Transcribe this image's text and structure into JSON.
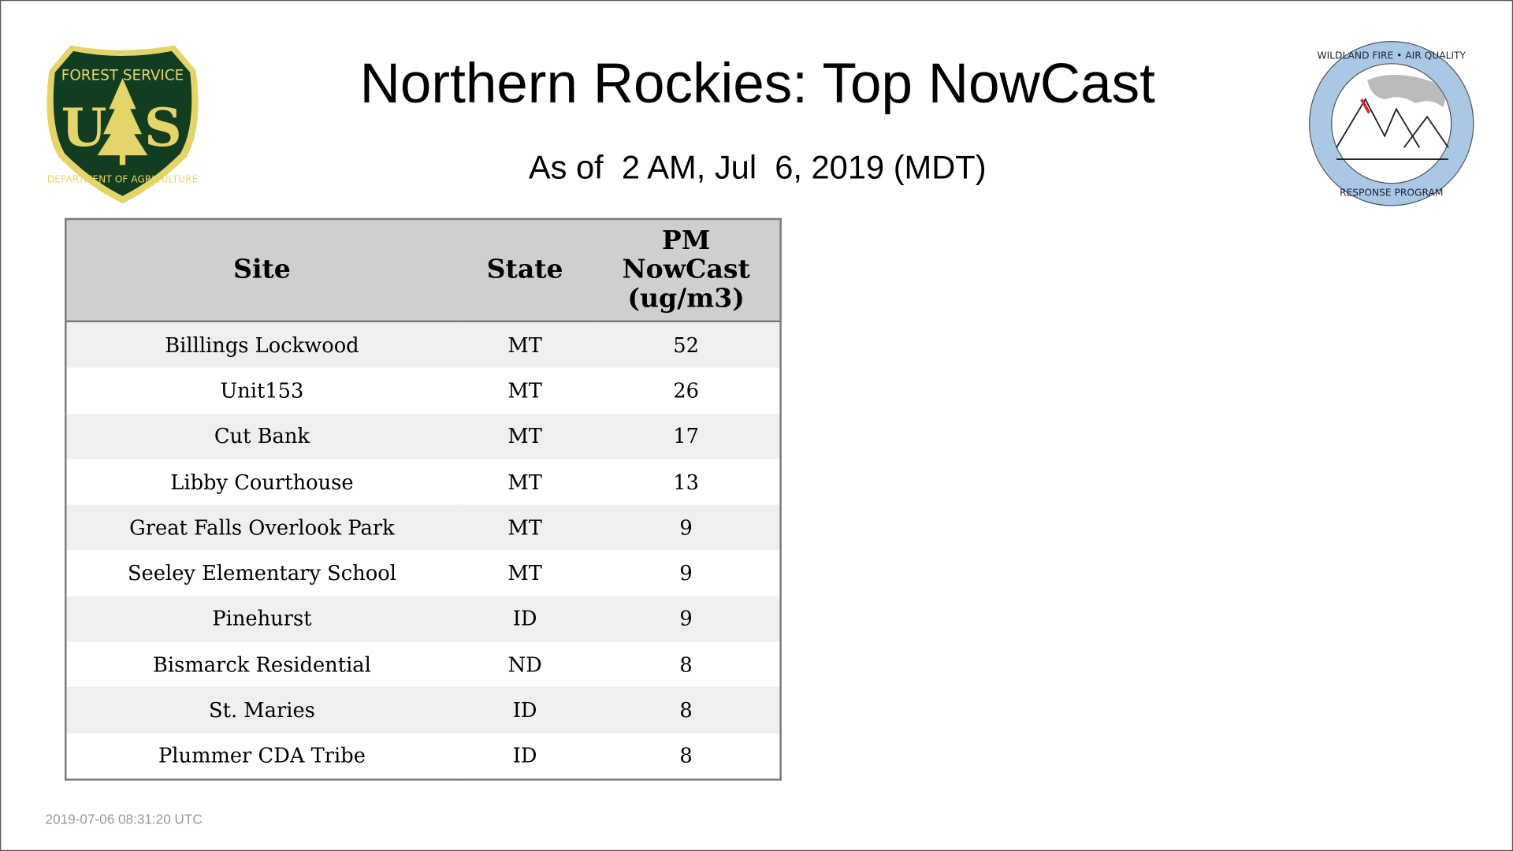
{
  "header": {
    "title": "Northern Rockies: Top NowCast",
    "subtitle": "As of  2 AM, Jul  6, 2019 (MDT)",
    "logo_left": {
      "name": "forest-service-logo",
      "text": [
        "FOREST SERVICE",
        "U S",
        "DEPARTMENT OF AGRICULTURE"
      ],
      "colors": {
        "shield": "#123d20",
        "trim": "#e4d46a"
      }
    },
    "logo_right": {
      "name": "wildland-fire-air-quality-logo",
      "text": [
        "WILDLAND FIRE • AIR QUALITY",
        "RESPONSE PROGRAM"
      ],
      "colors": {
        "ring": "#a9c8e6"
      }
    }
  },
  "table": {
    "columns": [
      "Site",
      "State",
      "PM NowCast (ug/m3)"
    ],
    "rows": [
      {
        "site": "Billlings Lockwood",
        "state": "MT",
        "value": "52"
      },
      {
        "site": "Unit153",
        "state": "MT",
        "value": "26"
      },
      {
        "site": "Cut Bank",
        "state": "MT",
        "value": "17"
      },
      {
        "site": "Libby Courthouse",
        "state": "MT",
        "value": "13"
      },
      {
        "site": "Great Falls Overlook Park",
        "state": "MT",
        "value": "9"
      },
      {
        "site": "Seeley Elementary School",
        "state": "MT",
        "value": "9"
      },
      {
        "site": "Pinehurst",
        "state": "ID",
        "value": "9"
      },
      {
        "site": "Bismarck Residential",
        "state": "ND",
        "value": "8"
      },
      {
        "site": "St. Maries",
        "state": "ID",
        "value": "8"
      },
      {
        "site": "Plummer CDA Tribe",
        "state": "ID",
        "value": "8"
      }
    ]
  },
  "footer": {
    "timestamp": "2019-07-06 08:31:20 UTC"
  }
}
